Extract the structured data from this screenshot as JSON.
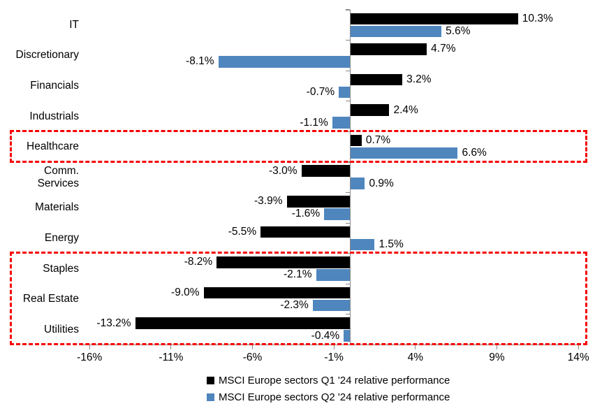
{
  "chart_data": {
    "type": "bar",
    "orientation": "horizontal",
    "title": "",
    "categories": [
      "IT",
      "Discretionary",
      "Financials",
      "Industrials",
      "Healthcare",
      "Comm. Services",
      "Materials",
      "Energy",
      "Staples",
      "Real Estate",
      "Utilities"
    ],
    "series": [
      {
        "name": "MSCI Europe sectors Q1 '24 relative performance",
        "color": "#000000",
        "values": [
          10.3,
          4.7,
          3.2,
          2.4,
          0.7,
          -3.0,
          -3.9,
          -5.5,
          -8.2,
          -9.0,
          -13.2
        ]
      },
      {
        "name": "MSCI Europe sectors Q2 '24 relative performance",
        "color": "#4f86be",
        "values": [
          5.6,
          -8.1,
          -0.7,
          -1.1,
          6.6,
          0.9,
          -1.6,
          1.5,
          -2.1,
          -2.3,
          -0.4
        ]
      }
    ],
    "data_label_format": "0.0%",
    "x_axis": {
      "ticks": [
        -16,
        -11,
        -6,
        -1,
        4,
        9,
        14
      ],
      "tick_labels": [
        "-16%",
        "-11%",
        "-6%",
        "-1%",
        "4%",
        "9%",
        "14%"
      ],
      "range": [
        -16.6,
        14.0
      ],
      "grid": false
    },
    "legend_position": "bottom",
    "annotation_color": "#f60000",
    "annotations": [
      {
        "type": "highlight-box",
        "style": "dashed",
        "from_category": "Healthcare",
        "to_category": "Healthcare"
      },
      {
        "type": "highlight-box",
        "style": "dashed",
        "from_category": "Staples",
        "to_category": "Utilities"
      }
    ]
  }
}
